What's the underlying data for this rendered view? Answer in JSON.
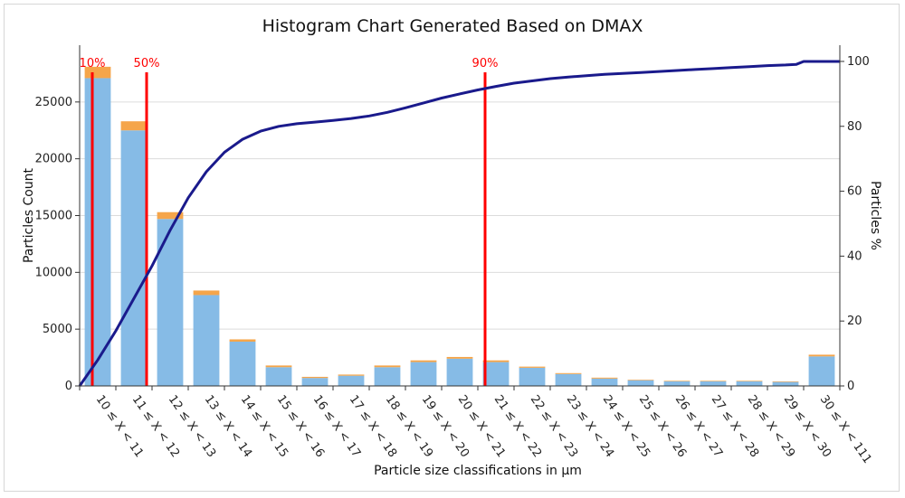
{
  "chart_data": {
    "type": "bar",
    "title": "Histogram Chart Generated Based on DMAX",
    "xlabel": "Particle size classifications in µm",
    "ylabel": "Particles Count",
    "y2label": "Particles %",
    "ylim": [
      0,
      30000
    ],
    "y2lim": [
      0,
      105
    ],
    "yticks": [
      0,
      5000,
      10000,
      15000,
      20000,
      25000
    ],
    "y2ticks": [
      0,
      20,
      40,
      60,
      80,
      100
    ],
    "grid": true,
    "categories": [
      "10 ≤ X < 11",
      "11 ≤ X < 12",
      "12 ≤ X < 13",
      "13 ≤ X < 14",
      "14 ≤ X < 15",
      "15 ≤ X < 16",
      "16 ≤ X < 17",
      "17 ≤ X < 18",
      "18 ≤ X < 19",
      "19 ≤ X < 20",
      "20 ≤ X < 21",
      "21 ≤ X < 22",
      "22 ≤ X < 23",
      "23 ≤ X < 24",
      "24 ≤ X < 25",
      "25 ≤ X < 26",
      "26 ≤ X < 27",
      "27 ≤ X < 28",
      "28 ≤ X < 29",
      "29 ≤ X < 30",
      "30 ≤ X < 111"
    ],
    "series": [
      {
        "color": "#86bbe6",
        "values": [
          27100,
          22500,
          14700,
          8000,
          3900,
          1650,
          700,
          900,
          1650,
          2100,
          2400,
          2100,
          1600,
          1050,
          650,
          500,
          400,
          400,
          400,
          350,
          2600
        ]
      },
      {
        "color": "#f5a54a",
        "values": [
          1000,
          800,
          600,
          400,
          200,
          150,
          100,
          100,
          150,
          150,
          150,
          150,
          100,
          80,
          80,
          50,
          50,
          50,
          50,
          50,
          150
        ]
      }
    ],
    "cumulative_line": {
      "color": "#1a1a8c",
      "points": [
        [
          0.0,
          0
        ],
        [
          0.5,
          8
        ],
        [
          1.0,
          17
        ],
        [
          1.5,
          27
        ],
        [
          2.0,
          37
        ],
        [
          2.5,
          48
        ],
        [
          3.0,
          58
        ],
        [
          3.5,
          66
        ],
        [
          4.0,
          72
        ],
        [
          4.5,
          76
        ],
        [
          5.0,
          78.5
        ],
        [
          5.5,
          80
        ],
        [
          6.0,
          80.8
        ],
        [
          6.5,
          81.3
        ],
        [
          7.0,
          81.8
        ],
        [
          7.5,
          82.4
        ],
        [
          8.0,
          83.2
        ],
        [
          8.5,
          84.3
        ],
        [
          9.0,
          85.7
        ],
        [
          9.5,
          87.2
        ],
        [
          10.0,
          88.7
        ],
        [
          10.5,
          90
        ],
        [
          11.0,
          91.2
        ],
        [
          11.5,
          92.3
        ],
        [
          12.0,
          93.3
        ],
        [
          12.5,
          94
        ],
        [
          13.0,
          94.7
        ],
        [
          13.5,
          95.2
        ],
        [
          14.0,
          95.6
        ],
        [
          14.5,
          96
        ],
        [
          15.0,
          96.3
        ],
        [
          15.5,
          96.6
        ],
        [
          16.0,
          96.9
        ],
        [
          16.5,
          97.2
        ],
        [
          17.0,
          97.5
        ],
        [
          17.5,
          97.8
        ],
        [
          18.0,
          98.1
        ],
        [
          18.5,
          98.4
        ],
        [
          19.0,
          98.7
        ],
        [
          19.5,
          98.9
        ],
        [
          19.8,
          99.1
        ],
        [
          20.0,
          100
        ],
        [
          21.0,
          100
        ]
      ]
    },
    "percentile_markers": [
      {
        "label": "10%",
        "x": 0.35,
        "color": "#ff0000"
      },
      {
        "label": "50%",
        "x": 1.85,
        "color": "#ff0000"
      },
      {
        "label": "90%",
        "x": 11.2,
        "color": "#ff0000"
      }
    ]
  }
}
